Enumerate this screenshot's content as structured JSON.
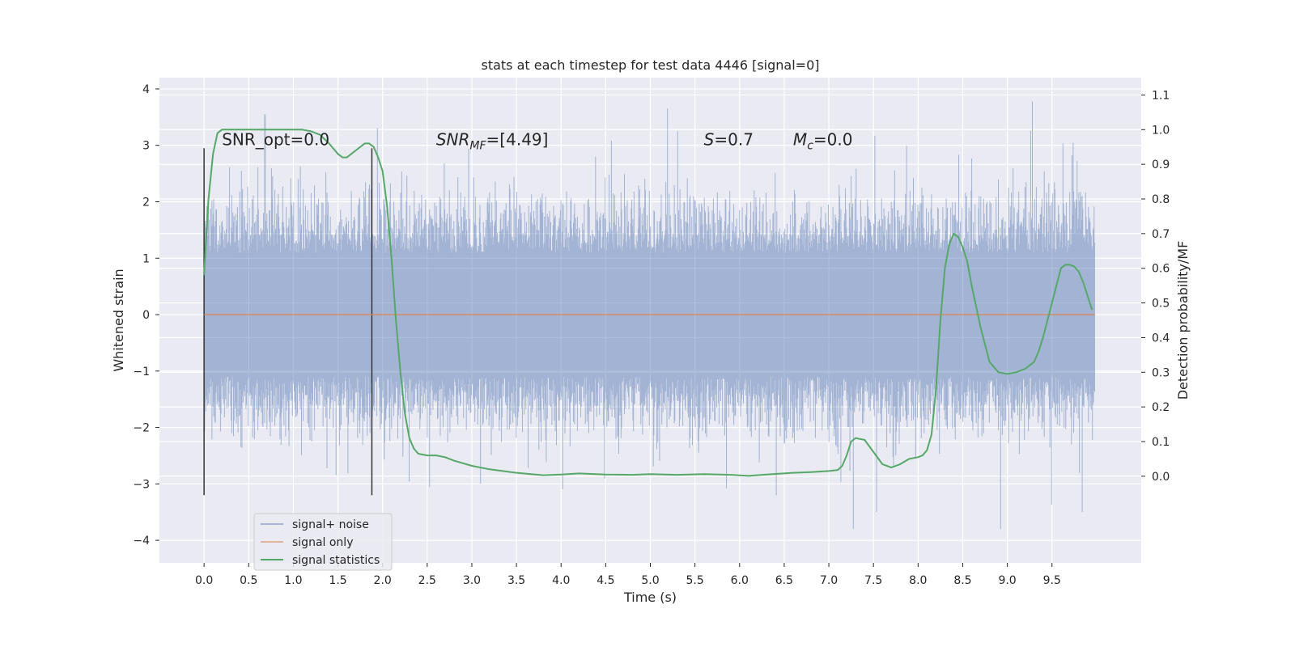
{
  "chart_data": {
    "type": "line",
    "title": "stats at each timestep for test data 4446 [signal=0]",
    "xlabel": "Time (s)",
    "ylabel": "Whitened strain",
    "y2label": "Detection probability/MF",
    "xlim": [
      -0.5,
      10.5
    ],
    "ylim": [
      -4.4,
      4.2
    ],
    "y2lim": [
      -0.25,
      1.15
    ],
    "xticks": [
      0.0,
      0.5,
      1.0,
      1.5,
      2.0,
      2.5,
      3.0,
      3.5,
      4.0,
      4.5,
      5.0,
      5.5,
      6.0,
      6.5,
      7.0,
      7.5,
      8.0,
      8.5,
      9.0,
      9.5
    ],
    "yticks": [
      -4,
      -3,
      -2,
      -1,
      0,
      1,
      2,
      3,
      4
    ],
    "y2ticks": [
      0.0,
      0.1,
      0.2,
      0.3,
      0.4,
      0.5,
      0.6,
      0.7,
      0.8,
      0.9,
      1.0,
      1.1
    ],
    "grid": true,
    "legend_position": "lower-left",
    "colors": {
      "noise": "#4c72b0",
      "signal": "#dd8452",
      "stats": "#55a868",
      "background": "#eaeaf2",
      "vline": "#333333"
    },
    "annotations": {
      "snr_opt": "SNR_opt=0.0",
      "snr_mf_main": "SNR",
      "snr_mf_sub": "MF",
      "snr_mf_value": "=[4.49]",
      "s_main": "S",
      "s_value": "=0.7",
      "mc_main": "M",
      "mc_sub": "c",
      "mc_value": "=0.0"
    },
    "vlines": [
      {
        "x": 0.0,
        "y": [
          -3.2,
          2.95
        ]
      },
      {
        "x": 1.88,
        "y": [
          -3.2,
          2.95
        ]
      }
    ],
    "series": [
      {
        "name": "signal+ noise",
        "axis": "left",
        "kind": "noise",
        "x_start": 0.0,
        "x_end": 9.98,
        "core_amplitude": 1.1,
        "peak_amplitude": 3.8
      },
      {
        "name": "signal only",
        "axis": "left",
        "kind": "line",
        "x": [
          0.0,
          9.98
        ],
        "y": [
          0.0,
          0.0
        ]
      },
      {
        "name": "signal statistics",
        "axis": "right",
        "kind": "line",
        "x": [
          0.0,
          0.05,
          0.1,
          0.15,
          0.2,
          0.3,
          0.5,
          0.7,
          0.9,
          1.1,
          1.2,
          1.3,
          1.4,
          1.5,
          1.55,
          1.6,
          1.7,
          1.8,
          1.85,
          1.9,
          1.95,
          2.0,
          2.05,
          2.1,
          2.15,
          2.2,
          2.25,
          2.3,
          2.35,
          2.4,
          2.5,
          2.6,
          2.7,
          2.8,
          3.0,
          3.2,
          3.5,
          3.8,
          4.0,
          4.2,
          4.5,
          4.8,
          5.0,
          5.3,
          5.6,
          5.9,
          6.1,
          6.3,
          6.6,
          6.8,
          7.0,
          7.1,
          7.15,
          7.2,
          7.25,
          7.3,
          7.4,
          7.5,
          7.6,
          7.7,
          7.8,
          7.9,
          8.0,
          8.05,
          8.1,
          8.15,
          8.2,
          8.25,
          8.3,
          8.35,
          8.4,
          8.45,
          8.5,
          8.55,
          8.6,
          8.7,
          8.8,
          8.9,
          9.0,
          9.1,
          9.2,
          9.3,
          9.35,
          9.4,
          9.5,
          9.55,
          9.6,
          9.65,
          9.7,
          9.75,
          9.8,
          9.85,
          9.9,
          9.95
        ],
        "y": [
          0.58,
          0.8,
          0.93,
          0.99,
          1.0,
          1.0,
          1.0,
          1.0,
          1.0,
          1.0,
          0.995,
          0.985,
          0.96,
          0.93,
          0.92,
          0.92,
          0.94,
          0.96,
          0.96,
          0.95,
          0.92,
          0.88,
          0.78,
          0.63,
          0.45,
          0.3,
          0.18,
          0.11,
          0.08,
          0.065,
          0.06,
          0.06,
          0.055,
          0.045,
          0.03,
          0.02,
          0.01,
          0.003,
          0.005,
          0.008,
          0.005,
          0.004,
          0.006,
          0.004,
          0.006,
          0.004,
          0.001,
          0.005,
          0.01,
          0.012,
          0.015,
          0.018,
          0.03,
          0.06,
          0.1,
          0.11,
          0.105,
          0.07,
          0.035,
          0.025,
          0.035,
          0.05,
          0.055,
          0.06,
          0.075,
          0.12,
          0.25,
          0.45,
          0.6,
          0.67,
          0.7,
          0.69,
          0.66,
          0.62,
          0.55,
          0.43,
          0.33,
          0.3,
          0.295,
          0.3,
          0.31,
          0.33,
          0.36,
          0.4,
          0.5,
          0.55,
          0.6,
          0.61,
          0.61,
          0.605,
          0.59,
          0.56,
          0.52,
          0.48
        ]
      }
    ]
  }
}
